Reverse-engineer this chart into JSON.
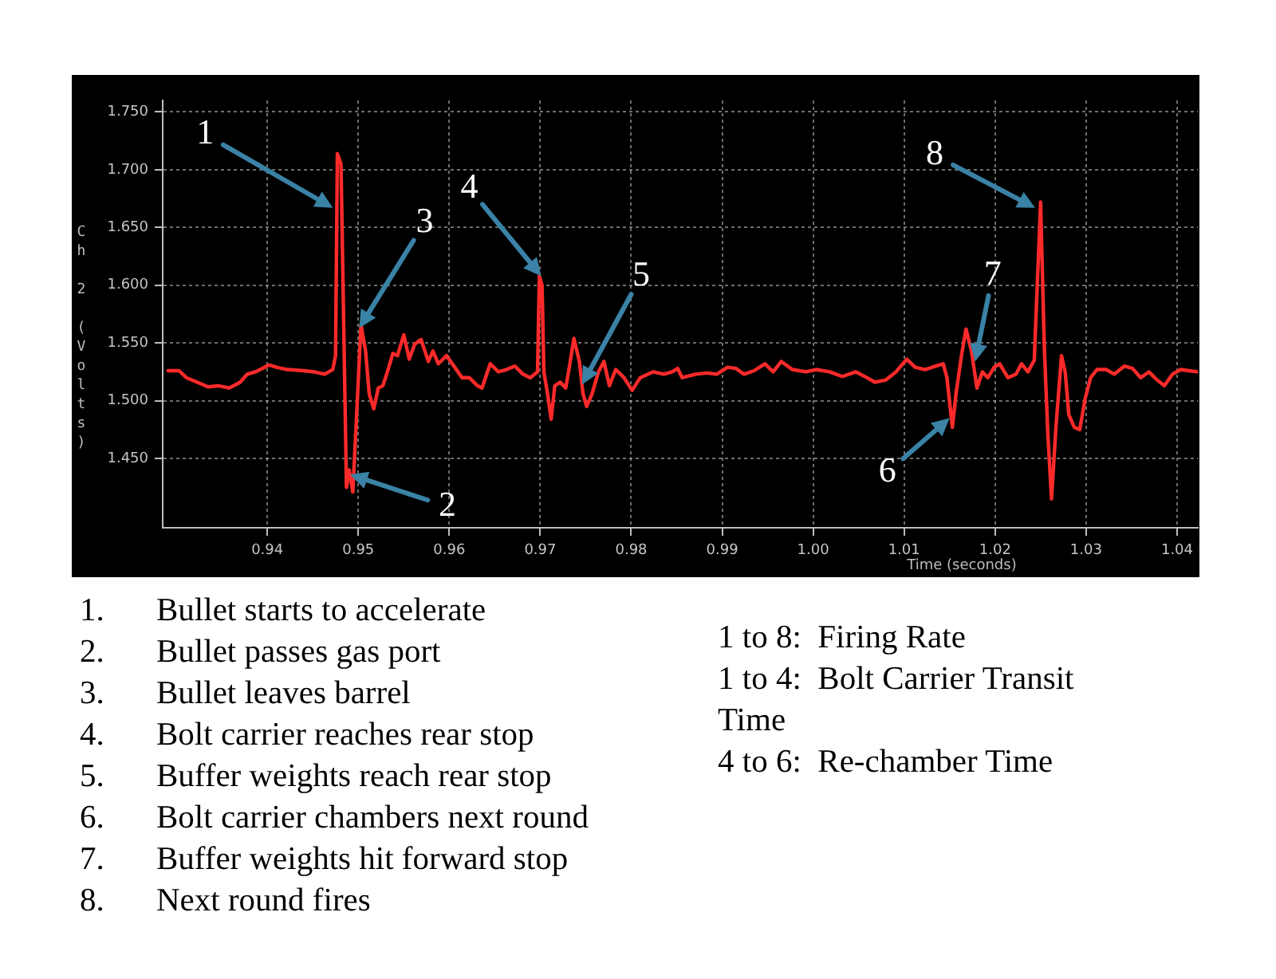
{
  "chart_data": {
    "type": "line",
    "xlabel": "Time (seconds)",
    "ylabel": "Ch 2 (Volts)",
    "xlim": [
      0.9285,
      1.0423
    ],
    "ylim": [
      1.39,
      1.76
    ],
    "xticks": [
      0.94,
      0.95,
      0.96,
      0.97,
      0.98,
      0.99,
      {
        "value": 1,
        "label": "1.00"
      },
      1.01,
      1.02,
      1.03,
      1.04
    ],
    "yticks": [
      {
        "value": 1.45,
        "label": "1.450"
      },
      {
        "value": 1.5,
        "label": "1.500"
      },
      {
        "value": 1.55,
        "label": "1.550"
      },
      {
        "value": 1.6,
        "label": "1.600"
      },
      {
        "value": 1.65,
        "label": "1.650"
      },
      {
        "value": 1.7,
        "label": "1.700"
      },
      {
        "value": 1.75,
        "label": "1.750"
      }
    ],
    "grid": true,
    "line_style": "solid",
    "series": [
      {
        "color": "#ff2a2a",
        "x": [
          0.9291,
          0.9303,
          0.9311,
          0.9323,
          0.9335,
          0.9346,
          0.9358,
          0.937,
          0.9378,
          0.9387,
          0.9402,
          0.941,
          0.9422,
          0.944,
          0.9451,
          0.9463,
          0.9472,
          0.9475,
          0.9477,
          0.9481,
          0.9487,
          0.949,
          0.9494,
          0.9503,
          0.9508,
          0.9512,
          0.9517,
          0.9522,
          0.9527,
          0.9532,
          0.9538,
          0.9543,
          0.955,
          0.9556,
          0.9562,
          0.9569,
          0.9577,
          0.9582,
          0.9588,
          0.9597,
          0.9606,
          0.9614,
          0.9622,
          0.9631,
          0.9636,
          0.9645,
          0.9654,
          0.9663,
          0.9672,
          0.9681,
          0.9689,
          0.9697,
          0.9699,
          0.9702,
          0.9704,
          0.9708,
          0.9712,
          0.9716,
          0.9722,
          0.9728,
          0.9732,
          0.9737,
          0.9743,
          0.9747,
          0.9751,
          0.9757,
          0.9764,
          0.977,
          0.9776,
          0.9783,
          0.9792,
          0.9801,
          0.981,
          0.9824,
          0.9836,
          0.9845,
          0.9851,
          0.9856,
          0.9871,
          0.9883,
          0.9894,
          0.9906,
          0.9915,
          0.9924,
          0.9935,
          0.9947,
          0.9956,
          0.9965,
          0.9977,
          0.9992,
          1.0003,
          1.0018,
          1.0032,
          1.0047,
          1.0059,
          1.0068,
          1.008,
          1.0091,
          1.0103,
          1.0112,
          1.0123,
          1.0135,
          1.0143,
          1.0147,
          1.0153,
          1.0157,
          1.0163,
          1.0168,
          1.0174,
          1.018,
          1.0186,
          1.0192,
          1.0199,
          1.0205,
          1.0214,
          1.0223,
          1.0229,
          1.0236,
          1.0243,
          1.025,
          1.0254,
          1.0258,
          1.0262,
          1.0267,
          1.0273,
          1.0277,
          1.0281,
          1.0287,
          1.0293,
          1.0299,
          1.0305,
          1.0312,
          1.0322,
          1.0331,
          1.0342,
          1.0351,
          1.036,
          1.0369,
          1.0378,
          1.0386,
          1.0395,
          1.0404,
          1.0413,
          1.0422
        ],
        "values": [
          1.526,
          1.526,
          1.52,
          1.516,
          1.512,
          1.513,
          1.511,
          1.516,
          1.523,
          1.525,
          1.531,
          1.529,
          1.527,
          1.526,
          1.525,
          1.523,
          1.527,
          1.539,
          1.714,
          1.705,
          1.425,
          1.44,
          1.421,
          1.566,
          1.543,
          1.506,
          1.493,
          1.511,
          1.513,
          1.525,
          1.541,
          1.539,
          1.557,
          1.536,
          1.549,
          1.553,
          1.534,
          1.543,
          1.532,
          1.539,
          1.529,
          1.52,
          1.52,
          1.513,
          1.511,
          1.532,
          1.525,
          1.527,
          1.53,
          1.523,
          1.52,
          1.525,
          1.608,
          1.6,
          1.525,
          1.506,
          1.484,
          1.513,
          1.516,
          1.511,
          1.529,
          1.554,
          1.534,
          1.506,
          1.495,
          1.506,
          1.525,
          1.534,
          1.513,
          1.527,
          1.52,
          1.509,
          1.52,
          1.525,
          1.523,
          1.525,
          1.528,
          1.52,
          1.523,
          1.524,
          1.523,
          1.529,
          1.528,
          1.523,
          1.526,
          1.532,
          1.525,
          1.534,
          1.527,
          1.525,
          1.527,
          1.525,
          1.521,
          1.525,
          1.52,
          1.516,
          1.518,
          1.525,
          1.536,
          1.529,
          1.527,
          1.53,
          1.532,
          1.52,
          1.477,
          1.506,
          1.539,
          1.562,
          1.543,
          1.511,
          1.525,
          1.52,
          1.529,
          1.532,
          1.52,
          1.523,
          1.532,
          1.525,
          1.535,
          1.672,
          1.548,
          1.47,
          1.415,
          1.479,
          1.539,
          1.525,
          1.488,
          1.477,
          1.475,
          1.502,
          1.52,
          1.527,
          1.527,
          1.523,
          1.53,
          1.528,
          1.52,
          1.525,
          1.518,
          1.513,
          1.523,
          1.527,
          1.526,
          1.525
        ]
      }
    ],
    "annotations": [
      {
        "text": "1",
        "x": 0.9472,
        "y": 1.667
      },
      {
        "text": "2",
        "x": 0.9491,
        "y": 1.436
      },
      {
        "text": "3",
        "x": 0.9501,
        "y": 1.563
      },
      {
        "text": "4",
        "x": 0.9701,
        "y": 1.608
      },
      {
        "text": "5",
        "x": 0.9746,
        "y": 1.514
      },
      {
        "text": "6",
        "x": 1.015,
        "y": 1.485
      },
      {
        "text": "7",
        "x": 1.0178,
        "y": 1.534
      },
      {
        "text": "8",
        "x": 1.0244,
        "y": 1.667
      },
      "1.\tBullet starts to accelerate\n2.\tBullet passes gas port\n3.\tBullet leaves barrel\n4.\tBolt carrier reaches rear stop\n5.\tBuffer weights reach rear stop\n6.\tBolt carrier chambers next round\n7.\tBuffer weights hit forward stop\n8.\tNext round fires",
      "1 to 8:  Firing Rate\n1 to 4:  Bolt Carrier Transit Time\n4 to 6:  Re-chamber Time"
    ]
  }
}
